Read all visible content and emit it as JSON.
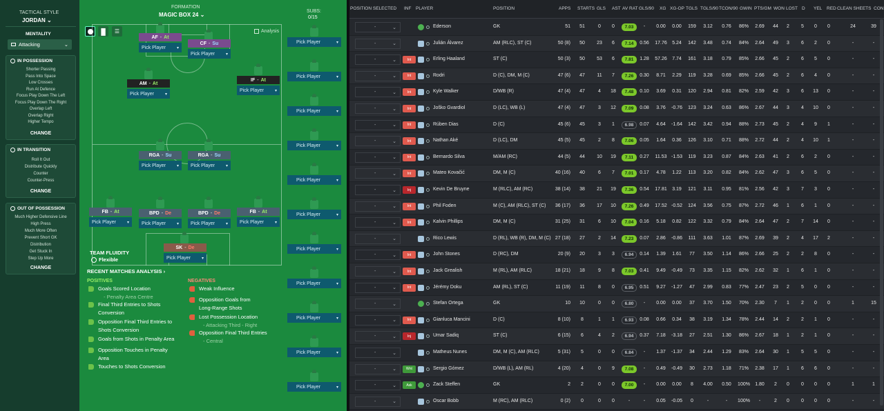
{
  "colors": {
    "pitch": "#1b8a3e",
    "sidebar": "#163d2d",
    "table_bg": "#24272c",
    "rating_green": "#7cc82a",
    "rating_grey": "#5a5e64",
    "status_int": "#e05a4e",
    "status_inj": "#b8272c",
    "status_wnt": "#3f9a3a",
    "status_ask": "#3f9a3a",
    "pick": "#0e5a6e"
  },
  "tactic": {
    "style_label": "TACTICAL STYLE",
    "style_value": "JORDAN",
    "mentality_label": "MENTALITY",
    "mentality_value": "Attacking",
    "in_possession": {
      "title": "IN POSSESSION",
      "items": [
        "Shorter Passing",
        "Pass Into Space",
        "Low Crosses",
        "Run At Defence",
        "Focus Play Down The Left",
        "Focus Play Down The Right",
        "Overlap Left",
        "Overlap Right",
        "Higher Tempo"
      ],
      "change": "CHANGE"
    },
    "in_transition": {
      "title": "IN TRANSITION",
      "items": [
        "Roll It Out",
        "Distribute Quickly",
        "Counter",
        "Counter-Press"
      ],
      "change": "CHANGE"
    },
    "out_of_possession": {
      "title": "OUT OF POSSESSION",
      "items": [
        "Much Higher Defensive Line",
        "High Press",
        "Much More Often",
        "Prevent Short GK",
        "Distribution",
        "Get Stuck In",
        "Step Up More"
      ],
      "change": "CHANGE"
    }
  },
  "formation": {
    "label": "FORMATION",
    "name": "MAGIC BOX 24",
    "subs_label": "SUBS:",
    "subs_count": "0/15",
    "analysis": "Analysis",
    "pick_player": "Pick Player",
    "positions": [
      {
        "code": "AF",
        "duty": "At"
      },
      {
        "code": "CF",
        "duty": "Su"
      },
      {
        "code": "AM",
        "duty": "At"
      },
      {
        "code": "IF",
        "duty": "At"
      },
      {
        "code": "RGA",
        "duty": "Su"
      },
      {
        "code": "RGA",
        "duty": "Su"
      },
      {
        "code": "FB",
        "duty": "At"
      },
      {
        "code": "BPD",
        "duty": "De"
      },
      {
        "code": "BPD",
        "duty": "De"
      },
      {
        "code": "FB",
        "duty": "At"
      },
      {
        "code": "SK",
        "duty": "De"
      }
    ],
    "fluidity_label": "TEAM FLUIDITY",
    "fluidity_value": "Flexible"
  },
  "analysis": {
    "title": "RECENT MATCHES ANALYSIS",
    "positives_label": "POSITIVES",
    "negatives_label": "NEGATIVES",
    "positives": [
      [
        "Goals Scored Location",
        "- Penalty Area Centre"
      ],
      [
        "Final Third Entries to Shots",
        "Conversion"
      ],
      [
        "Opposition Final Third Entries to",
        "Shots Conversion"
      ],
      [
        "Goals from Shots in Penalty Area",
        ""
      ],
      [
        "Opposition Touches in Penalty",
        "Area"
      ],
      [
        "Touches to Shots Conversion",
        ""
      ]
    ],
    "negatives": [
      [
        "Weak Influence",
        ""
      ],
      [
        "Opposition Goals from",
        "Long-Range Shots"
      ],
      [
        "Lost Possession Location",
        "- Attacking Third - Right"
      ],
      [
        "Opposition Final Third Entries",
        "- Central"
      ]
    ]
  },
  "table": {
    "headers": [
      "POSITION SELECTED",
      "INF",
      "PLAYER",
      "POSITION",
      "APPS",
      "STARTS",
      "GLS",
      "AST",
      "AV RAT",
      "GLS/90",
      "XG",
      "XG-OP",
      "TGLS",
      "TGLS/90",
      "TCON/90",
      "GWIN",
      "PTS/GM",
      "WON",
      "LOST",
      "D",
      "YEL",
      "RED",
      "CLEAN SHEETS",
      "CON"
    ],
    "dash": "-",
    "rows": [
      {
        "inf": "",
        "player": "Ederson",
        "position": "GK",
        "apps": "51",
        "starts": "51",
        "gls": "0",
        "ast": "0",
        "rat": "7.03",
        "g90": "-",
        "xg": "0.00",
        "xgop": "0.00",
        "tgls": "159",
        "t90": "3.12",
        "tcon": "0.76",
        "gwin": "86%",
        "ptsgm": "2.69",
        "won": "44",
        "lost": "2",
        "d": "5",
        "yel": "0",
        "red": "0",
        "cs": "24",
        "con": "39",
        "gk": true
      },
      {
        "inf": "",
        "player": "Julián Álvarez",
        "position": "AM (RLC), ST (C)",
        "apps": "50 (8)",
        "starts": "50",
        "gls": "23",
        "ast": "6",
        "rat": "7.14",
        "g90": "0.56",
        "xg": "17.76",
        "xgop": "5.24",
        "tgls": "142",
        "t90": "3.48",
        "tcon": "0.74",
        "gwin": "84%",
        "ptsgm": "2.64",
        "won": "49",
        "lost": "3",
        "d": "6",
        "yel": "2",
        "red": "0",
        "cs": "-",
        "con": "-"
      },
      {
        "inf": "Int",
        "player": "Erling Haaland",
        "position": "ST (C)",
        "apps": "50 (3)",
        "starts": "50",
        "gls": "53",
        "ast": "6",
        "rat": "7.81",
        "g90": "1.28",
        "xg": "57.26",
        "xgop": "7.74",
        "tgls": "161",
        "t90": "3.18",
        "tcon": "0.79",
        "gwin": "85%",
        "ptsgm": "2.66",
        "won": "45",
        "lost": "2",
        "d": "6",
        "yel": "5",
        "red": "0",
        "cs": "-",
        "con": "-"
      },
      {
        "inf": "Int",
        "player": "Rodri",
        "position": "D (C), DM, M (C)",
        "apps": "47 (6)",
        "starts": "47",
        "gls": "11",
        "ast": "7",
        "rat": "7.26",
        "g90": "0.30",
        "xg": "8.71",
        "xgop": "2.29",
        "tgls": "119",
        "t90": "3.28",
        "tcon": "0.69",
        "gwin": "85%",
        "ptsgm": "2.66",
        "won": "45",
        "lost": "2",
        "d": "6",
        "yel": "4",
        "red": "0",
        "cs": "-",
        "con": "-"
      },
      {
        "inf": "Int",
        "player": "Kyle Walker",
        "position": "D/WB (R)",
        "apps": "47 (4)",
        "starts": "47",
        "gls": "4",
        "ast": "18",
        "rat": "7.48",
        "g90": "0.10",
        "xg": "3.69",
        "xgop": "0.31",
        "tgls": "120",
        "t90": "2.94",
        "tcon": "0.81",
        "gwin": "82%",
        "ptsgm": "2.59",
        "won": "42",
        "lost": "3",
        "d": "6",
        "yel": "13",
        "red": "0",
        "cs": "-",
        "con": "-"
      },
      {
        "inf": "Int",
        "player": "Joško Gvardiol",
        "position": "D (LC), WB (L)",
        "apps": "47 (4)",
        "starts": "47",
        "gls": "3",
        "ast": "12",
        "rat": "7.09",
        "g90": "0.08",
        "xg": "3.76",
        "xgop": "-0.76",
        "tgls": "123",
        "t90": "3.24",
        "tcon": "0.63",
        "gwin": "86%",
        "ptsgm": "2.67",
        "won": "44",
        "lost": "3",
        "d": "4",
        "yel": "10",
        "red": "0",
        "cs": "-",
        "con": "-"
      },
      {
        "inf": "Int",
        "player": "Rúben Dias",
        "position": "D (C)",
        "apps": "45 (6)",
        "starts": "45",
        "gls": "3",
        "ast": "1",
        "rat": "6.98",
        "g90": "0.07",
        "xg": "4.64",
        "xgop": "-1.64",
        "tgls": "142",
        "t90": "3.42",
        "tcon": "0.94",
        "gwin": "88%",
        "ptsgm": "2.73",
        "won": "45",
        "lost": "2",
        "d": "4",
        "yel": "9",
        "red": "1",
        "cs": "-",
        "con": "-"
      },
      {
        "inf": "Int",
        "player": "Nathan Aké",
        "position": "D (LC), DM",
        "apps": "45 (5)",
        "starts": "45",
        "gls": "2",
        "ast": "8",
        "rat": "7.06",
        "g90": "0.05",
        "xg": "1.64",
        "xgop": "0.36",
        "tgls": "126",
        "t90": "3.10",
        "tcon": "0.71",
        "gwin": "88%",
        "ptsgm": "2.72",
        "won": "44",
        "lost": "2",
        "d": "4",
        "yel": "10",
        "red": "1",
        "cs": "-",
        "con": "-"
      },
      {
        "inf": "Int",
        "player": "Bernardo Silva",
        "position": "M/AM (RC)",
        "apps": "44 (5)",
        "starts": "44",
        "gls": "10",
        "ast": "19",
        "rat": "7.11",
        "g90": "0.27",
        "xg": "11.53",
        "xgop": "-1.53",
        "tgls": "119",
        "t90": "3.23",
        "tcon": "0.87",
        "gwin": "84%",
        "ptsgm": "2.63",
        "won": "41",
        "lost": "2",
        "d": "6",
        "yel": "2",
        "red": "0",
        "cs": "-",
        "con": "-"
      },
      {
        "inf": "Int",
        "player": "Mateo Kovačić",
        "position": "DM, M (C)",
        "apps": "40 (16)",
        "starts": "40",
        "gls": "6",
        "ast": "7",
        "rat": "7.01",
        "g90": "0.17",
        "xg": "4.78",
        "xgop": "1.22",
        "tgls": "113",
        "t90": "3.20",
        "tcon": "0.82",
        "gwin": "84%",
        "ptsgm": "2.62",
        "won": "47",
        "lost": "3",
        "d": "6",
        "yel": "5",
        "red": "0",
        "cs": "-",
        "con": "-"
      },
      {
        "inf": "Inj",
        "player": "Kevin De Bruyne",
        "position": "M (RLC), AM (RC)",
        "apps": "38 (14)",
        "starts": "38",
        "gls": "21",
        "ast": "19",
        "rat": "7.36",
        "g90": "0.54",
        "xg": "17.81",
        "xgop": "3.19",
        "tgls": "121",
        "t90": "3.11",
        "tcon": "0.95",
        "gwin": "81%",
        "ptsgm": "2.56",
        "won": "42",
        "lost": "3",
        "d": "7",
        "yel": "3",
        "red": "0",
        "cs": "-",
        "con": "-"
      },
      {
        "inf": "Int",
        "player": "Phil Foden",
        "position": "M (C), AM (RLC), ST (C)",
        "apps": "36 (17)",
        "starts": "36",
        "gls": "17",
        "ast": "10",
        "rat": "7.26",
        "g90": "0.49",
        "xg": "17.52",
        "xgop": "-0.52",
        "tgls": "124",
        "t90": "3.56",
        "tcon": "0.75",
        "gwin": "87%",
        "ptsgm": "2.72",
        "won": "46",
        "lost": "1",
        "d": "6",
        "yel": "1",
        "red": "0",
        "cs": "-",
        "con": "-"
      },
      {
        "inf": "Int",
        "player": "Kalvin Phillips",
        "position": "DM, M (C)",
        "apps": "31 (25)",
        "starts": "31",
        "gls": "6",
        "ast": "10",
        "rat": "7.04",
        "g90": "0.16",
        "xg": "5.18",
        "xgop": "0.82",
        "tgls": "122",
        "t90": "3.32",
        "tcon": "0.79",
        "gwin": "84%",
        "ptsgm": "2.64",
        "won": "47",
        "lost": "2",
        "d": "7",
        "yel": "14",
        "red": "0",
        "cs": "-",
        "con": "-"
      },
      {
        "inf": "",
        "player": "Rico Lewis",
        "position": "D (RL), WB (R), DM, M (C)",
        "apps": "27 (18)",
        "starts": "27",
        "gls": "2",
        "ast": "14",
        "rat": "7.23",
        "g90": "0.07",
        "xg": "2.86",
        "xgop": "-0.86",
        "tgls": "111",
        "t90": "3.63",
        "tcon": "1.01",
        "gwin": "87%",
        "ptsgm": "2.69",
        "won": "39",
        "lost": "2",
        "d": "4",
        "yel": "17",
        "red": "2",
        "cs": "-",
        "con": "-"
      },
      {
        "inf": "Int",
        "player": "John Stones",
        "position": "D (RC), DM",
        "apps": "20 (9)",
        "starts": "20",
        "gls": "3",
        "ast": "3",
        "rat": "6.94",
        "g90": "0.14",
        "xg": "1.39",
        "xgop": "1.61",
        "tgls": "77",
        "t90": "3.50",
        "tcon": "1.14",
        "gwin": "86%",
        "ptsgm": "2.66",
        "won": "25",
        "lost": "2",
        "d": "2",
        "yel": "8",
        "red": "0",
        "cs": "-",
        "con": "-"
      },
      {
        "inf": "Int",
        "player": "Jack Grealish",
        "position": "M (RL), AM (RLC)",
        "apps": "18 (21)",
        "starts": "18",
        "gls": "9",
        "ast": "8",
        "rat": "7.03",
        "g90": "0.41",
        "xg": "9.49",
        "xgop": "-0.49",
        "tgls": "73",
        "t90": "3.35",
        "tcon": "1.15",
        "gwin": "82%",
        "ptsgm": "2.62",
        "won": "32",
        "lost": "1",
        "d": "6",
        "yel": "1",
        "red": "0",
        "cs": "-",
        "con": "-"
      },
      {
        "inf": "Int",
        "player": "Jérémy Doku",
        "position": "AM (RL), ST (C)",
        "apps": "11 (19)",
        "starts": "11",
        "gls": "8",
        "ast": "0",
        "rat": "6.95",
        "g90": "0.51",
        "xg": "9.27",
        "xgop": "-1.27",
        "tgls": "47",
        "t90": "2.99",
        "tcon": "0.83",
        "gwin": "77%",
        "ptsgm": "2.47",
        "won": "23",
        "lost": "2",
        "d": "5",
        "yel": "0",
        "red": "0",
        "cs": "-",
        "con": "-"
      },
      {
        "inf": "",
        "player": "Stefan Ortega",
        "position": "GK",
        "apps": "10",
        "starts": "10",
        "gls": "0",
        "ast": "0",
        "rat": "6.80",
        "g90": "-",
        "xg": "0.00",
        "xgop": "0.00",
        "tgls": "37",
        "t90": "3.70",
        "tcon": "1.50",
        "gwin": "70%",
        "ptsgm": "2.30",
        "won": "7",
        "lost": "1",
        "d": "2",
        "yel": "0",
        "red": "0",
        "cs": "1",
        "con": "15",
        "gk": true
      },
      {
        "inf": "Int",
        "player": "Gianluca Mancini",
        "position": "D (C)",
        "apps": "8 (10)",
        "starts": "8",
        "gls": "1",
        "ast": "1",
        "rat": "6.93",
        "g90": "0.08",
        "xg": "0.66",
        "xgop": "0.34",
        "tgls": "38",
        "t90": "3.19",
        "tcon": "1.34",
        "gwin": "78%",
        "ptsgm": "2.44",
        "won": "14",
        "lost": "2",
        "d": "2",
        "yel": "1",
        "red": "0",
        "cs": "-",
        "con": "-"
      },
      {
        "inf": "Inj",
        "player": "Umar Sadiq",
        "position": "ST (C)",
        "apps": "6 (15)",
        "starts": "6",
        "gls": "4",
        "ast": "2",
        "rat": "6.94",
        "g90": "0.37",
        "xg": "7.18",
        "xgop": "-3.18",
        "tgls": "27",
        "t90": "2.51",
        "tcon": "1.30",
        "gwin": "86%",
        "ptsgm": "2.67",
        "won": "18",
        "lost": "1",
        "d": "2",
        "yel": "1",
        "red": "0",
        "cs": "-",
        "con": "-"
      },
      {
        "inf": "",
        "player": "Matheus Nunes",
        "position": "DM, M (C), AM (RLC)",
        "apps": "5 (31)",
        "starts": "5",
        "gls": "0",
        "ast": "0",
        "rat": "6.84",
        "g90": "-",
        "xg": "1.37",
        "xgop": "-1.37",
        "tgls": "34",
        "t90": "2.44",
        "tcon": "1.29",
        "gwin": "83%",
        "ptsgm": "2.64",
        "won": "30",
        "lost": "1",
        "d": "5",
        "yel": "5",
        "red": "0",
        "cs": "-",
        "con": "-"
      },
      {
        "inf": "Wnt",
        "player": "Sergio Gómez",
        "position": "D/WB (L), AM (RL)",
        "apps": "4 (20)",
        "starts": "4",
        "gls": "0",
        "ast": "9",
        "rat": "7.08",
        "g90": "-",
        "xg": "0.49",
        "xgop": "-0.49",
        "tgls": "30",
        "t90": "2.73",
        "tcon": "1.18",
        "gwin": "71%",
        "ptsgm": "2.38",
        "won": "17",
        "lost": "1",
        "d": "6",
        "yel": "6",
        "red": "0",
        "cs": "-",
        "con": "-"
      },
      {
        "inf": "Ask",
        "player": "Zack Steffen",
        "position": "GK",
        "apps": "2",
        "starts": "2",
        "gls": "0",
        "ast": "0",
        "rat": "7.00",
        "g90": "-",
        "xg": "0.00",
        "xgop": "0.00",
        "tgls": "8",
        "t90": "4.00",
        "tcon": "0.50",
        "gwin": "100%",
        "ptsgm": "1.80",
        "won": "2",
        "lost": "0",
        "d": "0",
        "yel": "0",
        "red": "0",
        "cs": "1",
        "con": "1",
        "gk": true
      },
      {
        "inf": "",
        "player": "Oscar Bobb",
        "position": "M (RC), AM (RLC)",
        "apps": "0 (2)",
        "starts": "0",
        "gls": "0",
        "ast": "0",
        "rat": "-",
        "g90": "-",
        "xg": "0.05",
        "xgop": "-0.05",
        "tgls": "0",
        "t90": "-",
        "tcon": "-",
        "gwin": "100%",
        "ptsgm": "-",
        "won": "2",
        "lost": "0",
        "d": "0",
        "yel": "0",
        "red": "0",
        "cs": "-",
        "con": "-"
      }
    ]
  }
}
